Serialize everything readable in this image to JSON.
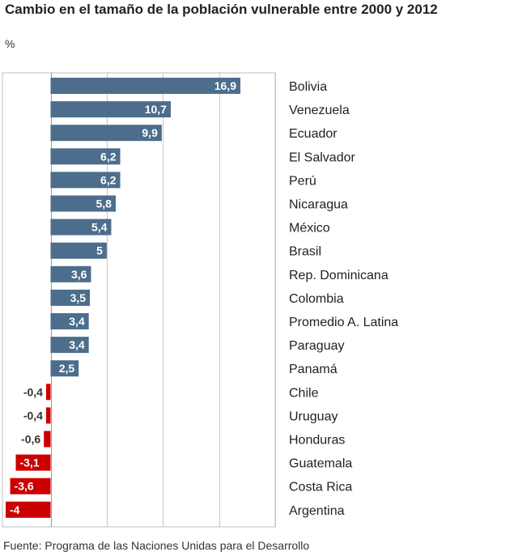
{
  "title": "Cambio en el tamaño de la población vulnerable entre 2000 y 2012",
  "unit": "%",
  "source": "Fuente: Programa de las Naciones Unidas para el Desarrollo",
  "colors": {
    "positive": "#4d6d8c",
    "negative": "#cc0000",
    "grid": "#c8c8c8",
    "frame": "#bdbdbd"
  },
  "chart_data": {
    "type": "bar",
    "orientation": "horizontal",
    "categories": [
      "Bolivia",
      "Venezuela",
      "Ecuador",
      "El Salvador",
      "Perú",
      "Nicaragua",
      "México",
      "Brasil",
      "Rep. Dominicana",
      "Colombia",
      "Promedio A. Latina",
      "Paraguay",
      "Panamá",
      "Chile",
      "Uruguay",
      "Honduras",
      "Guatemala",
      "Costa Rica",
      "Argentina"
    ],
    "values": [
      16.9,
      10.7,
      9.9,
      6.2,
      6.2,
      5.8,
      5.4,
      5,
      3.6,
      3.5,
      3.4,
      3.4,
      2.5,
      -0.4,
      -0.4,
      -0.6,
      -3.1,
      -3.6,
      -4
    ],
    "value_labels": [
      "16,9",
      "10,7",
      "9,9",
      "6,2",
      "6,2",
      "5,8",
      "5,4",
      "5",
      "3,6",
      "3,5",
      "3,4",
      "3,4",
      "2,5",
      "-0,4",
      "-0,4",
      "-0,6",
      "-3,1",
      "-3,6",
      "-4"
    ],
    "xlim": [
      -4,
      20
    ],
    "gridlines": [
      0,
      5,
      10,
      15,
      20
    ],
    "grid": true,
    "legend": "none"
  }
}
